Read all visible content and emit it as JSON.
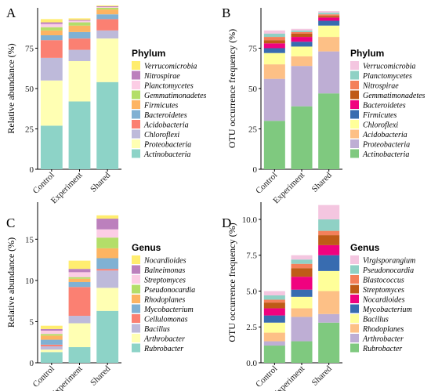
{
  "chart_data": [
    {
      "panel": "A",
      "type": "bar",
      "stacked": true,
      "ylabel": "Relative abundance (%)",
      "ylim": [
        0,
        100
      ],
      "yticks": [
        0,
        25,
        50,
        75
      ],
      "categories": [
        "Control",
        "Experiment",
        "Shared"
      ],
      "legend_title": "Phylum",
      "legend_position": "right",
      "series": [
        {
          "name": "Actinobacteria",
          "color": "#8dd3c7",
          "values": [
            27,
            42,
            54
          ]
        },
        {
          "name": "Proteobacteria",
          "color": "#ffffb3",
          "values": [
            28,
            25,
            27
          ]
        },
        {
          "name": "Chloroflexi",
          "color": "#bebada",
          "values": [
            14,
            7,
            5
          ]
        },
        {
          "name": "Acidobacteria",
          "color": "#fb8072",
          "values": [
            11,
            7,
            7
          ]
        },
        {
          "name": "Bacteroidetes",
          "color": "#80b1d3",
          "values": [
            3,
            4,
            3
          ]
        },
        {
          "name": "Firmicutes",
          "color": "#fdb462",
          "values": [
            3,
            4,
            3
          ]
        },
        {
          "name": "Gemmatimonadetes",
          "color": "#b3de69",
          "values": [
            2,
            2,
            1
          ]
        },
        {
          "name": "Planctomycetes",
          "color": "#fccde5",
          "values": [
            2,
            1,
            0.5
          ]
        },
        {
          "name": "Nitrospirae",
          "color": "#bc80bd",
          "values": [
            1,
            0.5,
            0.5
          ]
        },
        {
          "name": "Verrucomicrobia",
          "color": "#ffed6f",
          "values": [
            2,
            1,
            0.5
          ]
        }
      ]
    },
    {
      "panel": "B",
      "type": "bar",
      "stacked": true,
      "ylabel": "OTU occurrence frequency (%)",
      "ylim": [
        0,
        100
      ],
      "yticks": [
        0,
        25,
        50,
        75
      ],
      "categories": [
        "Control",
        "Experiment",
        "Shared"
      ],
      "legend_title": "Phylum",
      "legend_position": "right",
      "series": [
        {
          "name": "Actinobacteria",
          "color": "#7fc97f",
          "values": [
            30,
            39,
            47
          ]
        },
        {
          "name": "Proteobacteria",
          "color": "#beaed4",
          "values": [
            26,
            25,
            26
          ]
        },
        {
          "name": "Acidobacteria",
          "color": "#fdc086",
          "values": [
            9,
            6,
            9
          ]
        },
        {
          "name": "Chloroflexi",
          "color": "#ffff99",
          "values": [
            7,
            6,
            7
          ]
        },
        {
          "name": "Firmicutes",
          "color": "#386cb0",
          "values": [
            3,
            3,
            3
          ]
        },
        {
          "name": "Bacteroidetes",
          "color": "#f0027f",
          "values": [
            3,
            3,
            2
          ]
        },
        {
          "name": "Gemmatimonadetes",
          "color": "#bf5b17",
          "values": [
            2,
            2,
            1
          ]
        },
        {
          "name": "Nitrospirae",
          "color": "#f4805a",
          "values": [
            2,
            1,
            1
          ]
        },
        {
          "name": "Planctomycetes",
          "color": "#8fd1c5",
          "values": [
            2,
            1,
            1
          ]
        },
        {
          "name": "Verrucomicrobia",
          "color": "#f4c6e0",
          "values": [
            2,
            1,
            1
          ]
        }
      ]
    },
    {
      "panel": "C",
      "type": "bar",
      "stacked": true,
      "ylabel": "Relative abundance (%)",
      "ylim": [
        0,
        19.5
      ],
      "yticks": [
        0,
        5,
        10,
        15
      ],
      "categories": [
        "Control",
        "Experiment",
        "Shared"
      ],
      "legend_title": "Genus",
      "legend_position": "right",
      "series": [
        {
          "name": "Rubrobacter",
          "color": "#8dd3c7",
          "values": [
            1.3,
            1.9,
            6.3
          ]
        },
        {
          "name": "Arthrobacter",
          "color": "#ffffb3",
          "values": [
            0.3,
            2.9,
            2.8
          ]
        },
        {
          "name": "Bacillus",
          "color": "#bebada",
          "values": [
            0.4,
            0.9,
            2.1
          ]
        },
        {
          "name": "Cellulomonas",
          "color": "#fb8072",
          "values": [
            0.2,
            3.5,
            0.2
          ]
        },
        {
          "name": "Mycobacterium",
          "color": "#80b1d3",
          "values": [
            0.6,
            0.6,
            1.3
          ]
        },
        {
          "name": "Rhodoplanes",
          "color": "#fdb462",
          "values": [
            0.5,
            0.4,
            1.2
          ]
        },
        {
          "name": "Pseudonocardia",
          "color": "#b3de69",
          "values": [
            0.2,
            0.2,
            1.3
          ]
        },
        {
          "name": "Streptomyces",
          "color": "#fccde5",
          "values": [
            0.4,
            0.6,
            1.0
          ]
        },
        {
          "name": "Balneimonas",
          "color": "#bc80bd",
          "values": [
            0.2,
            0.4,
            1.3
          ]
        },
        {
          "name": "Nocardioides",
          "color": "#ffed6f",
          "values": [
            0.4,
            1.0,
            0.4
          ]
        }
      ]
    },
    {
      "panel": "D",
      "type": "bar",
      "stacked": true,
      "ylabel": "OTU occurrence frequency (%)",
      "ylim": [
        0,
        11.2
      ],
      "yticks": [
        0,
        2.5,
        5,
        7.5,
        10
      ],
      "ytick_labels": [
        "0.0",
        "2.5",
        "5.0",
        "7.5",
        "10.0"
      ],
      "categories": [
        "Control",
        "Experiment",
        "Shared"
      ],
      "legend_title": "Genus",
      "legend_position": "right",
      "series": [
        {
          "name": "Rubrobacter",
          "color": "#7fc97f",
          "values": [
            1.2,
            1.5,
            2.8
          ]
        },
        {
          "name": "Arthrobacter",
          "color": "#beaed4",
          "values": [
            0.3,
            1.7,
            0.6
          ]
        },
        {
          "name": "Rhodoplanes",
          "color": "#fdc086",
          "values": [
            0.6,
            0.6,
            1.6
          ]
        },
        {
          "name": "Bacillus",
          "color": "#ffff99",
          "values": [
            0.7,
            0.8,
            1.4
          ]
        },
        {
          "name": "Mycobacterium",
          "color": "#386cb0",
          "values": [
            0.5,
            0.5,
            1.1
          ]
        },
        {
          "name": "Nocardioides",
          "color": "#f0027f",
          "values": [
            0.5,
            0.9,
            0.7
          ]
        },
        {
          "name": "Streptomyces",
          "color": "#bf5b17",
          "values": [
            0.4,
            0.6,
            0.7
          ]
        },
        {
          "name": "Blastococcus",
          "color": "#f4805a",
          "values": [
            0.2,
            0.3,
            0.3
          ]
        },
        {
          "name": "Pseudonocardia",
          "color": "#8fd1c5",
          "values": [
            0.3,
            0.3,
            0.8
          ]
        },
        {
          "name": "Virgisporangium",
          "color": "#f4c6e0",
          "values": [
            0.3,
            0.3,
            1.0
          ]
        }
      ]
    }
  ]
}
